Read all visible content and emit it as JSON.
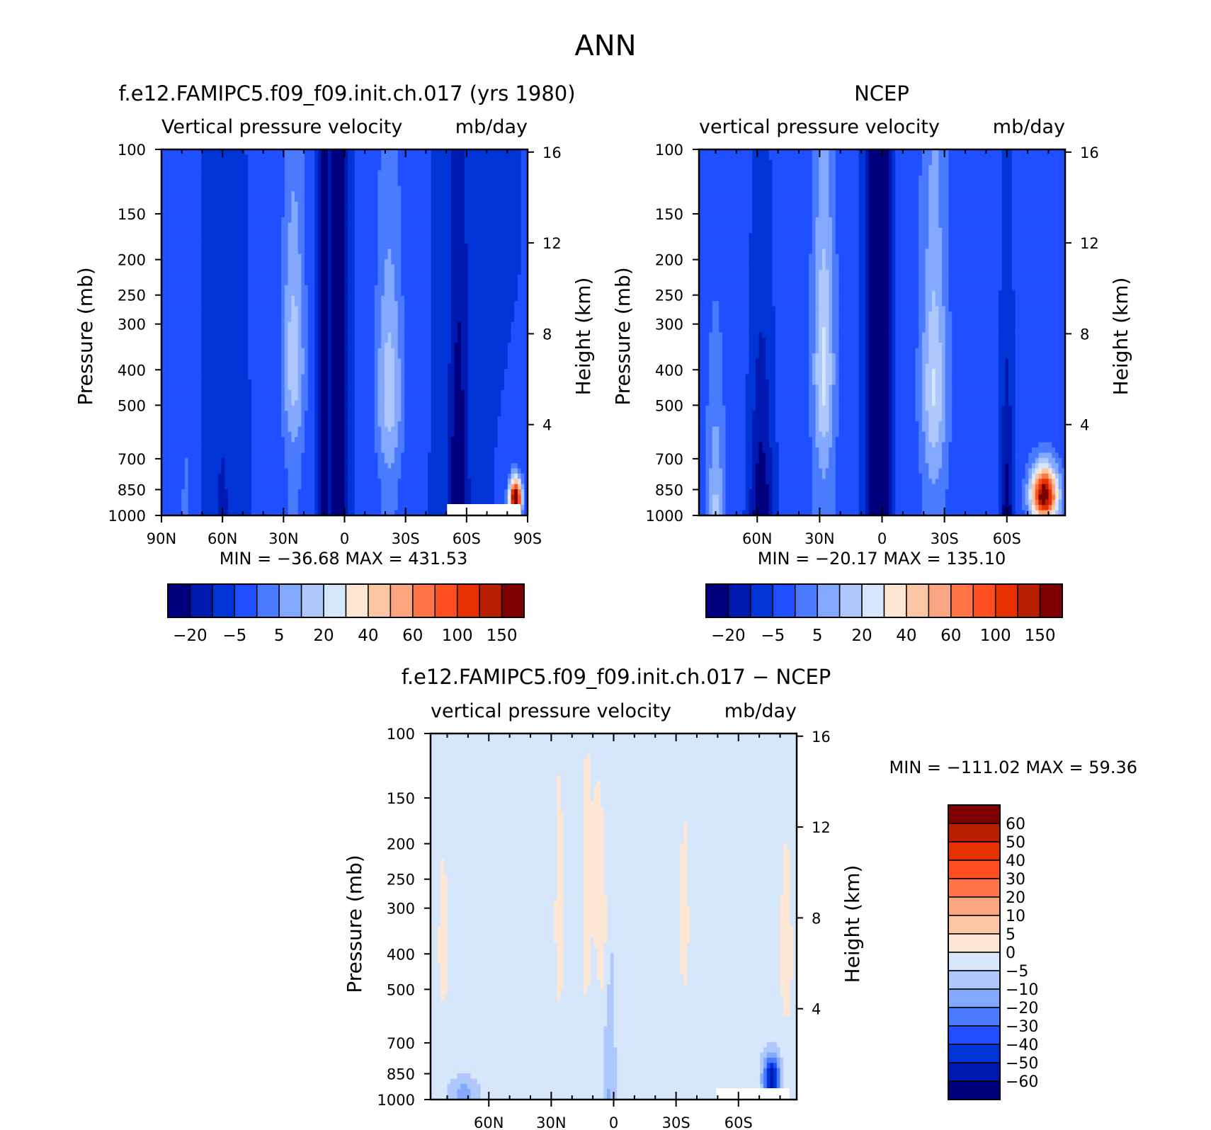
{
  "main_title": "ANN",
  "palette": [
    "#00007f",
    "#0019b0",
    "#0034d6",
    "#1f4fff",
    "#4a7bff",
    "#82a8ff",
    "#afc8fb",
    "#d6e7fb",
    "#fde6d4",
    "#fcc6a4",
    "#fca681",
    "#ff7548",
    "#ff4f20",
    "#e63000",
    "#b81f00",
    "#7f0000"
  ],
  "chart_data": [
    {
      "type": "heatmap",
      "title": "f.e12.FAMIPC5.f09_f09.init.ch.017 (yrs 1980)",
      "subtitle_left": "Vertical pressure velocity",
      "units": "mb/day",
      "ylabel": "Pressure (mb)",
      "y2label": "Height (km)",
      "y_ticks": [
        100,
        150,
        200,
        250,
        300,
        400,
        500,
        700,
        850,
        1000
      ],
      "y2_ticks": [
        16,
        12,
        8,
        4
      ],
      "x_ticks": [
        "90N",
        "60N",
        "30N",
        "0",
        "30S",
        "60S",
        "90S"
      ],
      "x_tick_lat": [
        90,
        60,
        30,
        0,
        -30,
        -60,
        -90
      ],
      "xlim": [
        90,
        -90
      ],
      "ylim": [
        1000,
        100
      ],
      "stats": "MIN = -36.68   MAX = 431.53",
      "colorbar_labels": [
        "-20",
        "-5",
        "5",
        "20",
        "40",
        "60",
        "100",
        "150"
      ],
      "colorbar_orientation": "horizontal"
    },
    {
      "type": "heatmap",
      "title": "NCEP",
      "subtitle_left": "vertical pressure velocity",
      "units": "mb/day",
      "ylabel": "Pressure (mb)",
      "y2label": "Height (km)",
      "y_ticks": [
        100,
        150,
        200,
        250,
        300,
        400,
        500,
        700,
        850,
        1000
      ],
      "y2_ticks": [
        16,
        12,
        8,
        4
      ],
      "x_ticks": [
        "60N",
        "30N",
        "0",
        "30S",
        "60S"
      ],
      "x_tick_lat": [
        60,
        30,
        0,
        -30,
        -60
      ],
      "xlim": [
        88,
        -88
      ],
      "ylim": [
        1000,
        100
      ],
      "stats": "MIN = -20.17   MAX = 135.10",
      "colorbar_labels": [
        "-20",
        "-5",
        "5",
        "20",
        "40",
        "60",
        "100",
        "150"
      ],
      "colorbar_orientation": "horizontal"
    },
    {
      "type": "heatmap",
      "title": "f.e12.FAMIPC5.f09_f09.init.ch.017 - NCEP",
      "subtitle_left": "vertical pressure velocity",
      "units": "mb/day",
      "ylabel": "Pressure (mb)",
      "y2label": "Height (km)",
      "y_ticks": [
        100,
        150,
        200,
        250,
        300,
        400,
        500,
        700,
        850,
        1000
      ],
      "y2_ticks": [
        16,
        12,
        8,
        4
      ],
      "x_ticks": [
        "60N",
        "30N",
        "0",
        "30S",
        "60S"
      ],
      "x_tick_lat": [
        60,
        30,
        0,
        -30,
        -60
      ],
      "xlim": [
        88,
        -88
      ],
      "ylim": [
        1000,
        100
      ],
      "stats": "MIN = -111.02   MAX =  59.36",
      "colorbar_labels": [
        "60",
        "50",
        "40",
        "30",
        "20",
        "10",
        "5",
        "0",
        "-5",
        "-10",
        "-20",
        "-30",
        "-40",
        "-50",
        "-60"
      ],
      "colorbar_orientation": "vertical"
    }
  ]
}
